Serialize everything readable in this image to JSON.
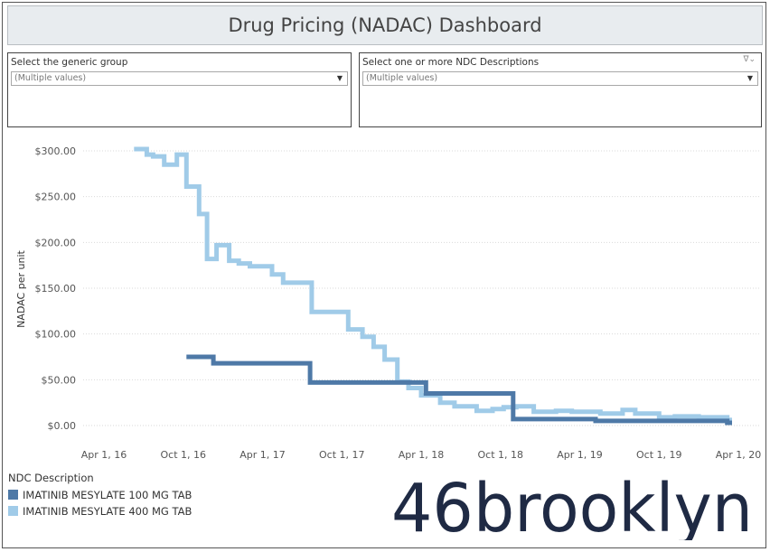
{
  "dashboard": {
    "title": "Drug Pricing (NADAC) Dashboard"
  },
  "filters": {
    "generic_group": {
      "label": "Select the generic group",
      "value": "(Multiple values)"
    },
    "ndc_descriptions": {
      "label": "Select one or more NDC Descriptions",
      "value": "(Multiple values)"
    }
  },
  "legend": {
    "title": "NDC Description",
    "items": [
      {
        "label": "IMATINIB MESYLATE 100 MG TAB",
        "color": "#4e79a7"
      },
      {
        "label": "IMATINIB MESYLATE 400 MG TAB",
        "color": "#a0cbe8"
      }
    ]
  },
  "logo": {
    "text": "46brooklyn"
  },
  "chart_data": {
    "type": "line",
    "title": "",
    "xlabel": "",
    "ylabel": "NADAC per unit",
    "ylim": [
      0,
      310
    ],
    "xlim": [
      2016.25,
      2020.25
    ],
    "yticks": [
      0,
      50,
      100,
      150,
      200,
      250,
      300
    ],
    "ytick_labels": [
      "$0.00",
      "$50.00",
      "$100.00",
      "$150.00",
      "$200.00",
      "$250.00",
      "$300.00"
    ],
    "xticks": [
      2016.25,
      2016.75,
      2017.25,
      2017.75,
      2018.25,
      2018.75,
      2019.25,
      2019.75,
      2020.25
    ],
    "xtick_labels": [
      "Apr 1, 16",
      "Oct 1, 16",
      "Apr 1, 17",
      "Oct 1, 17",
      "Apr 1, 18",
      "Oct 1, 18",
      "Apr 1, 19",
      "Oct 1, 19",
      "Apr 1, 20"
    ],
    "grid": "horizontal dotted",
    "series": [
      {
        "name": "IMATINIB MESYLATE 400 MG TAB",
        "color": "#a0cbe8",
        "points": [
          [
            2016.44,
            302
          ],
          [
            2016.52,
            302
          ],
          [
            2016.52,
            296
          ],
          [
            2016.56,
            296
          ],
          [
            2016.56,
            294
          ],
          [
            2016.63,
            294
          ],
          [
            2016.63,
            285
          ],
          [
            2016.71,
            285
          ],
          [
            2016.71,
            296
          ],
          [
            2016.77,
            296
          ],
          [
            2016.77,
            261
          ],
          [
            2016.85,
            261
          ],
          [
            2016.85,
            231
          ],
          [
            2016.9,
            231
          ],
          [
            2016.9,
            182
          ],
          [
            2016.96,
            182
          ],
          [
            2016.96,
            197
          ],
          [
            2017.04,
            197
          ],
          [
            2017.04,
            180
          ],
          [
            2017.1,
            180
          ],
          [
            2017.1,
            177
          ],
          [
            2017.17,
            177
          ],
          [
            2017.17,
            174
          ],
          [
            2017.31,
            174
          ],
          [
            2017.31,
            165
          ],
          [
            2017.38,
            165
          ],
          [
            2017.38,
            156
          ],
          [
            2017.56,
            156
          ],
          [
            2017.56,
            124
          ],
          [
            2017.79,
            124
          ],
          [
            2017.79,
            105
          ],
          [
            2017.88,
            105
          ],
          [
            2017.88,
            97
          ],
          [
            2017.95,
            97
          ],
          [
            2017.95,
            86
          ],
          [
            2018.02,
            86
          ],
          [
            2018.02,
            72
          ],
          [
            2018.1,
            72
          ],
          [
            2018.1,
            48
          ],
          [
            2018.17,
            48
          ],
          [
            2018.17,
            41
          ],
          [
            2018.25,
            41
          ],
          [
            2018.25,
            33
          ],
          [
            2018.37,
            33
          ],
          [
            2018.37,
            25
          ],
          [
            2018.46,
            25
          ],
          [
            2018.46,
            21
          ],
          [
            2018.6,
            21
          ],
          [
            2018.6,
            16
          ],
          [
            2018.7,
            16
          ],
          [
            2018.7,
            18
          ],
          [
            2018.77,
            18
          ],
          [
            2018.77,
            20
          ],
          [
            2018.85,
            20
          ],
          [
            2018.85,
            21
          ],
          [
            2018.96,
            21
          ],
          [
            2018.96,
            15
          ],
          [
            2019.1,
            15
          ],
          [
            2019.1,
            16
          ],
          [
            2019.2,
            16
          ],
          [
            2019.2,
            15
          ],
          [
            2019.38,
            15
          ],
          [
            2019.38,
            13
          ],
          [
            2019.52,
            13
          ],
          [
            2019.52,
            17
          ],
          [
            2019.6,
            17
          ],
          [
            2019.6,
            13
          ],
          [
            2019.75,
            13
          ],
          [
            2019.75,
            9
          ],
          [
            2019.85,
            9
          ],
          [
            2019.85,
            10
          ],
          [
            2020.0,
            10
          ],
          [
            2020.0,
            9
          ],
          [
            2020.18,
            9
          ],
          [
            2020.18,
            6
          ],
          [
            2020.21,
            6
          ]
        ]
      },
      {
        "name": "IMATINIB MESYLATE 100 MG TAB",
        "color": "#4e79a7",
        "points": [
          [
            2016.77,
            75
          ],
          [
            2016.94,
            75
          ],
          [
            2016.94,
            68
          ],
          [
            2017.55,
            68
          ],
          [
            2017.55,
            47
          ],
          [
            2018.28,
            47
          ],
          [
            2018.28,
            35
          ],
          [
            2018.83,
            35
          ],
          [
            2018.83,
            7
          ],
          [
            2019.35,
            7
          ],
          [
            2019.35,
            5
          ],
          [
            2020.18,
            5
          ],
          [
            2020.18,
            3
          ],
          [
            2020.21,
            3
          ]
        ]
      }
    ]
  }
}
